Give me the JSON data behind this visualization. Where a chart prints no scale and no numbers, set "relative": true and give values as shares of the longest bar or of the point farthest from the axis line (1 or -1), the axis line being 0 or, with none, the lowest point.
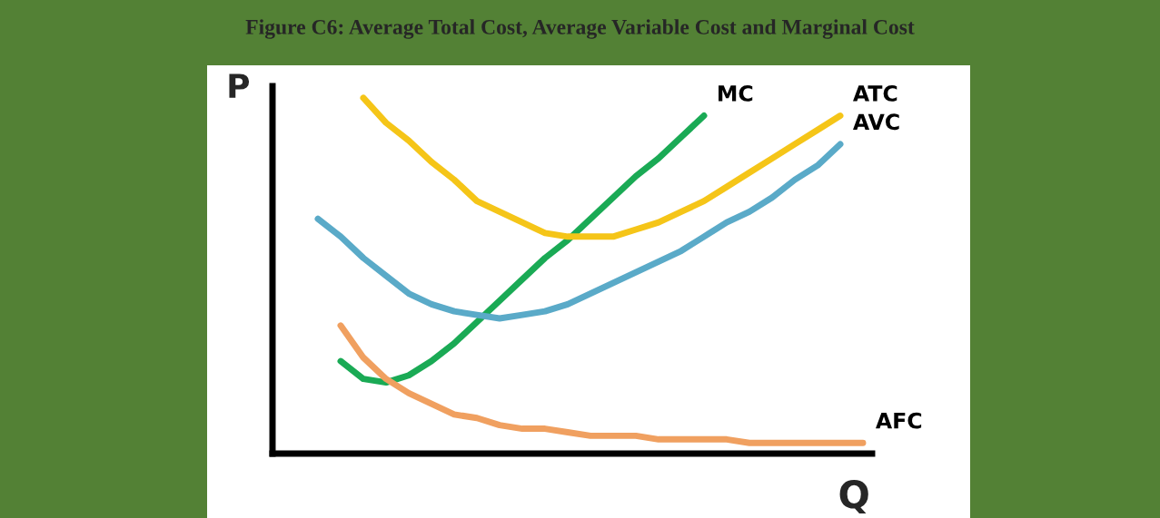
{
  "chart_data": {
    "type": "line",
    "title": "Figure C6: Average Total Cost, Average Variable Cost and Marginal Cost",
    "xlabel": "Q",
    "ylabel": "P",
    "relative": true,
    "legend": false,
    "marker": "none",
    "line_style": "solid",
    "categories": [
      null,
      null,
      null,
      null,
      null,
      null,
      null,
      null,
      null,
      null,
      null,
      null,
      null,
      null,
      null,
      null,
      null,
      null,
      null,
      null,
      null,
      null,
      null,
      null,
      null
    ],
    "series": [
      {
        "name": "MC",
        "color": "#1aaa55",
        "values": [
          null,
          0.26,
          0.21,
          0.2,
          0.22,
          0.26,
          0.31,
          0.37,
          0.43,
          0.49,
          0.55,
          0.6,
          0.66,
          0.72,
          0.78,
          0.83,
          0.89,
          0.95,
          null,
          null,
          null,
          null,
          null,
          null,
          null
        ]
      },
      {
        "name": "ATC",
        "color": "#f5c518",
        "values": [
          null,
          null,
          1.0,
          0.93,
          0.88,
          0.82,
          0.77,
          0.71,
          0.68,
          0.65,
          0.62,
          0.61,
          0.61,
          0.61,
          0.63,
          0.65,
          0.68,
          0.71,
          0.75,
          0.79,
          0.83,
          0.87,
          0.91,
          0.95,
          null
        ]
      },
      {
        "name": "AVC",
        "color": "#5aaac8",
        "values": [
          0.66,
          0.61,
          0.55,
          0.5,
          0.45,
          0.42,
          0.4,
          0.39,
          0.38,
          0.39,
          0.4,
          0.42,
          0.45,
          0.48,
          0.51,
          0.54,
          0.57,
          0.61,
          0.65,
          0.68,
          0.72,
          0.77,
          0.81,
          0.87,
          null
        ]
      },
      {
        "name": "AFC",
        "color": "#f0a060",
        "values": [
          null,
          0.36,
          0.27,
          0.21,
          0.17,
          0.14,
          0.11,
          0.1,
          0.08,
          0.07,
          0.07,
          0.06,
          0.05,
          0.05,
          0.05,
          0.04,
          0.04,
          0.04,
          0.04,
          0.03,
          0.03,
          0.03,
          0.03,
          0.03,
          0.03
        ]
      }
    ]
  }
}
